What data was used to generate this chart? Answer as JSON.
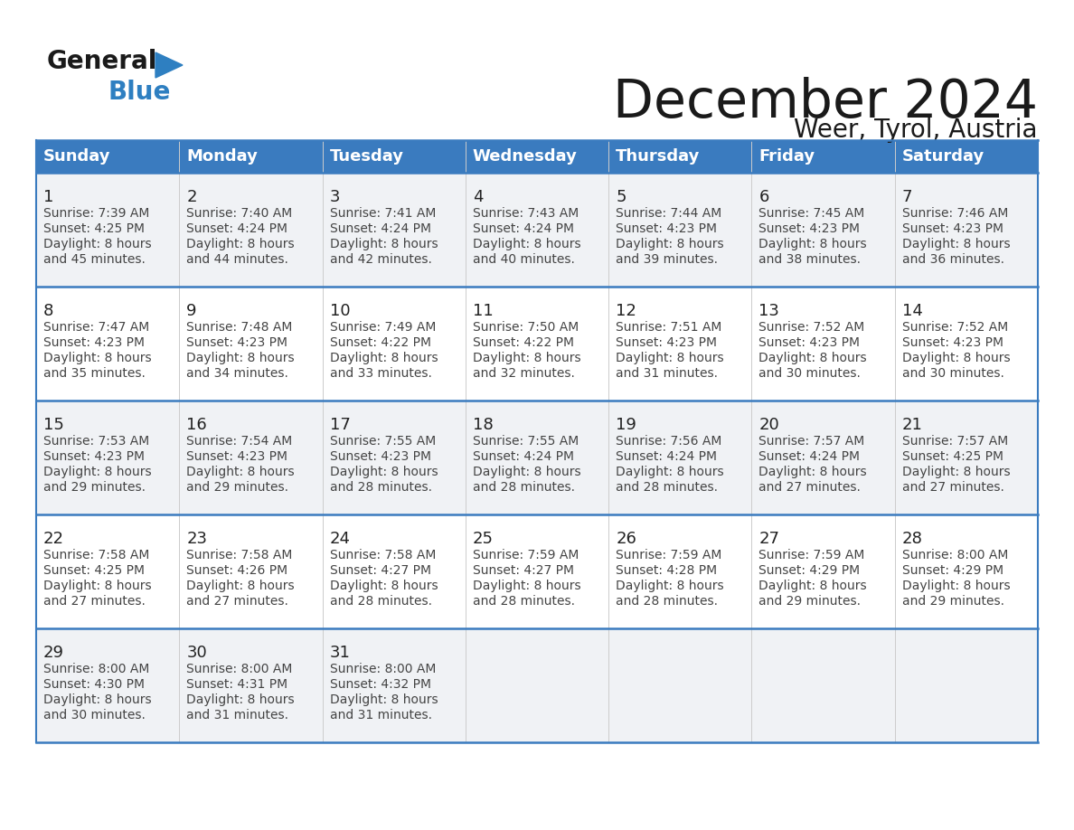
{
  "title": "December 2024",
  "subtitle": "Weer, Tyrol, Austria",
  "header_bg_color": "#3a7bbf",
  "header_text_color": "#ffffff",
  "row_line_color": "#3a7bbf",
  "cell_border_color": "#cccccc",
  "cell_bg_colors": [
    "#f0f2f5",
    "#ffffff"
  ],
  "day_headers": [
    "Sunday",
    "Monday",
    "Tuesday",
    "Wednesday",
    "Thursday",
    "Friday",
    "Saturday"
  ],
  "calendar_data": [
    [
      {
        "day": 1,
        "sunrise": "7:39 AM",
        "sunset": "4:25 PM",
        "daylight_hours": 8,
        "daylight_minutes": 45
      },
      {
        "day": 2,
        "sunrise": "7:40 AM",
        "sunset": "4:24 PM",
        "daylight_hours": 8,
        "daylight_minutes": 44
      },
      {
        "day": 3,
        "sunrise": "7:41 AM",
        "sunset": "4:24 PM",
        "daylight_hours": 8,
        "daylight_minutes": 42
      },
      {
        "day": 4,
        "sunrise": "7:43 AM",
        "sunset": "4:24 PM",
        "daylight_hours": 8,
        "daylight_minutes": 40
      },
      {
        "day": 5,
        "sunrise": "7:44 AM",
        "sunset": "4:23 PM",
        "daylight_hours": 8,
        "daylight_minutes": 39
      },
      {
        "day": 6,
        "sunrise": "7:45 AM",
        "sunset": "4:23 PM",
        "daylight_hours": 8,
        "daylight_minutes": 38
      },
      {
        "day": 7,
        "sunrise": "7:46 AM",
        "sunset": "4:23 PM",
        "daylight_hours": 8,
        "daylight_minutes": 36
      }
    ],
    [
      {
        "day": 8,
        "sunrise": "7:47 AM",
        "sunset": "4:23 PM",
        "daylight_hours": 8,
        "daylight_minutes": 35
      },
      {
        "day": 9,
        "sunrise": "7:48 AM",
        "sunset": "4:23 PM",
        "daylight_hours": 8,
        "daylight_minutes": 34
      },
      {
        "day": 10,
        "sunrise": "7:49 AM",
        "sunset": "4:22 PM",
        "daylight_hours": 8,
        "daylight_minutes": 33
      },
      {
        "day": 11,
        "sunrise": "7:50 AM",
        "sunset": "4:22 PM",
        "daylight_hours": 8,
        "daylight_minutes": 32
      },
      {
        "day": 12,
        "sunrise": "7:51 AM",
        "sunset": "4:23 PM",
        "daylight_hours": 8,
        "daylight_minutes": 31
      },
      {
        "day": 13,
        "sunrise": "7:52 AM",
        "sunset": "4:23 PM",
        "daylight_hours": 8,
        "daylight_minutes": 30
      },
      {
        "day": 14,
        "sunrise": "7:52 AM",
        "sunset": "4:23 PM",
        "daylight_hours": 8,
        "daylight_minutes": 30
      }
    ],
    [
      {
        "day": 15,
        "sunrise": "7:53 AM",
        "sunset": "4:23 PM",
        "daylight_hours": 8,
        "daylight_minutes": 29
      },
      {
        "day": 16,
        "sunrise": "7:54 AM",
        "sunset": "4:23 PM",
        "daylight_hours": 8,
        "daylight_minutes": 29
      },
      {
        "day": 17,
        "sunrise": "7:55 AM",
        "sunset": "4:23 PM",
        "daylight_hours": 8,
        "daylight_minutes": 28
      },
      {
        "day": 18,
        "sunrise": "7:55 AM",
        "sunset": "4:24 PM",
        "daylight_hours": 8,
        "daylight_minutes": 28
      },
      {
        "day": 19,
        "sunrise": "7:56 AM",
        "sunset": "4:24 PM",
        "daylight_hours": 8,
        "daylight_minutes": 28
      },
      {
        "day": 20,
        "sunrise": "7:57 AM",
        "sunset": "4:24 PM",
        "daylight_hours": 8,
        "daylight_minutes": 27
      },
      {
        "day": 21,
        "sunrise": "7:57 AM",
        "sunset": "4:25 PM",
        "daylight_hours": 8,
        "daylight_minutes": 27
      }
    ],
    [
      {
        "day": 22,
        "sunrise": "7:58 AM",
        "sunset": "4:25 PM",
        "daylight_hours": 8,
        "daylight_minutes": 27
      },
      {
        "day": 23,
        "sunrise": "7:58 AM",
        "sunset": "4:26 PM",
        "daylight_hours": 8,
        "daylight_minutes": 27
      },
      {
        "day": 24,
        "sunrise": "7:58 AM",
        "sunset": "4:27 PM",
        "daylight_hours": 8,
        "daylight_minutes": 28
      },
      {
        "day": 25,
        "sunrise": "7:59 AM",
        "sunset": "4:27 PM",
        "daylight_hours": 8,
        "daylight_minutes": 28
      },
      {
        "day": 26,
        "sunrise": "7:59 AM",
        "sunset": "4:28 PM",
        "daylight_hours": 8,
        "daylight_minutes": 28
      },
      {
        "day": 27,
        "sunrise": "7:59 AM",
        "sunset": "4:29 PM",
        "daylight_hours": 8,
        "daylight_minutes": 29
      },
      {
        "day": 28,
        "sunrise": "8:00 AM",
        "sunset": "4:29 PM",
        "daylight_hours": 8,
        "daylight_minutes": 29
      }
    ],
    [
      {
        "day": 29,
        "sunrise": "8:00 AM",
        "sunset": "4:30 PM",
        "daylight_hours": 8,
        "daylight_minutes": 30
      },
      {
        "day": 30,
        "sunrise": "8:00 AM",
        "sunset": "4:31 PM",
        "daylight_hours": 8,
        "daylight_minutes": 31
      },
      {
        "day": 31,
        "sunrise": "8:00 AM",
        "sunset": "4:32 PM",
        "daylight_hours": 8,
        "daylight_minutes": 31
      },
      null,
      null,
      null,
      null
    ]
  ],
  "logo_color_general": "#1a1a1a",
  "logo_color_blue": "#2e7fc1",
  "title_fontsize": 42,
  "subtitle_fontsize": 20,
  "day_header_fontsize": 13,
  "day_num_fontsize": 13,
  "cell_text_fontsize": 10
}
